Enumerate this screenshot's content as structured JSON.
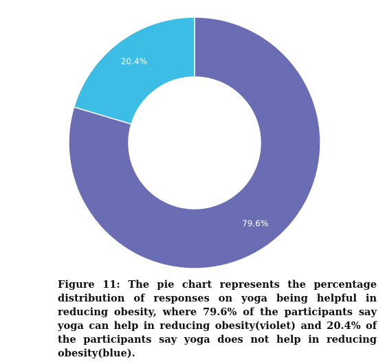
{
  "chart_data": {
    "type": "pie",
    "donut": true,
    "slices": [
      {
        "label": "79.6%",
        "value": 79.6,
        "color": "#6a6db3"
      },
      {
        "label": "20.4%",
        "value": 20.4,
        "color": "#3cbde5"
      }
    ],
    "legend": "none"
  },
  "caption": "Figure 11: The pie chart represents the percentage distribution of responses on yoga being helpful in reducing obesity, where 79.6% of the participants say yoga can help in reducing obesity(violet) and 20.4% of the participants say yoga does not help in reducing obesity(blue)."
}
